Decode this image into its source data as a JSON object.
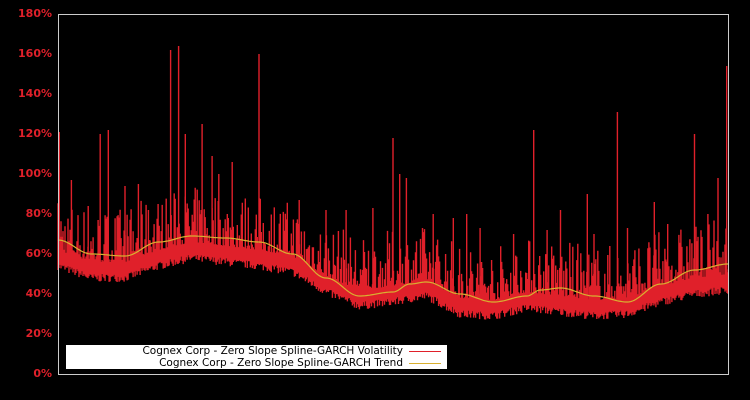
{
  "chart_data": {
    "type": "line",
    "title": "",
    "xlabel": "",
    "ylabel": "",
    "ylim": [
      0,
      180
    ],
    "yticks": [
      "0%",
      "20%",
      "40%",
      "60%",
      "80%",
      "100%",
      "120%",
      "140%",
      "160%",
      "180%"
    ],
    "grid": false,
    "legend_position": "lower-left",
    "colors": {
      "background": "#000000",
      "axis": "#cccccc",
      "tick_label": "#e0202a",
      "volatility": "#e0202a",
      "trend": "#d9b030"
    },
    "series": [
      {
        "name": "Cognex Corp - Zero Slope Spline-GARCH Volatility",
        "kind": "volatility",
        "baseline_x": [
          0,
          0.05,
          0.1,
          0.15,
          0.2,
          0.25,
          0.3,
          0.35,
          0.4,
          0.45,
          0.5,
          0.55,
          0.6,
          0.65,
          0.7,
          0.75,
          0.8,
          0.85,
          0.9,
          0.95,
          1.0
        ],
        "baseline_y": [
          58,
          52,
          52,
          58,
          62,
          60,
          58,
          55,
          45,
          38,
          40,
          43,
          34,
          33,
          37,
          35,
          33,
          34,
          40,
          44,
          46
        ],
        "spikes": [
          [
            0.002,
            121
          ],
          [
            0.02,
            97
          ],
          [
            0.045,
            84
          ],
          [
            0.063,
            120
          ],
          [
            0.075,
            122
          ],
          [
            0.1,
            94
          ],
          [
            0.12,
            95
          ],
          [
            0.135,
            82
          ],
          [
            0.168,
            162
          ],
          [
            0.18,
            164
          ],
          [
            0.19,
            120
          ],
          [
            0.215,
            125
          ],
          [
            0.23,
            109
          ],
          [
            0.24,
            100
          ],
          [
            0.26,
            106
          ],
          [
            0.3,
            160
          ],
          [
            0.36,
            87
          ],
          [
            0.4,
            82
          ],
          [
            0.43,
            82
          ],
          [
            0.47,
            83
          ],
          [
            0.5,
            118
          ],
          [
            0.51,
            100
          ],
          [
            0.52,
            98
          ],
          [
            0.56,
            80
          ],
          [
            0.59,
            78
          ],
          [
            0.61,
            80
          ],
          [
            0.63,
            73
          ],
          [
            0.68,
            70
          ],
          [
            0.71,
            122
          ],
          [
            0.73,
            72
          ],
          [
            0.75,
            82
          ],
          [
            0.79,
            90
          ],
          [
            0.8,
            70
          ],
          [
            0.835,
            131
          ],
          [
            0.85,
            73
          ],
          [
            0.89,
            86
          ],
          [
            0.91,
            75
          ],
          [
            0.95,
            120
          ],
          [
            0.97,
            80
          ],
          [
            0.985,
            98
          ],
          [
            0.998,
            154
          ]
        ]
      },
      {
        "name": "Cognex Corp - Zero Slope Spline-GARCH Trend",
        "kind": "trend",
        "x": [
          0,
          0.05,
          0.1,
          0.15,
          0.2,
          0.25,
          0.3,
          0.35,
          0.4,
          0.45,
          0.5,
          0.525,
          0.55,
          0.6,
          0.65,
          0.7,
          0.72,
          0.75,
          0.8,
          0.85,
          0.9,
          0.95,
          1.0
        ],
        "values": [
          67,
          60,
          59,
          66,
          69,
          68,
          66,
          60,
          48,
          39,
          41,
          45,
          46,
          40,
          36,
          39,
          42,
          43,
          39,
          36,
          45,
          52,
          55
        ]
      }
    ]
  },
  "legend": {
    "volatility_label": "Cognex Corp - Zero Slope Spline-GARCH Volatility",
    "trend_label": "Cognex Corp - Zero Slope Spline-GARCH Trend"
  }
}
